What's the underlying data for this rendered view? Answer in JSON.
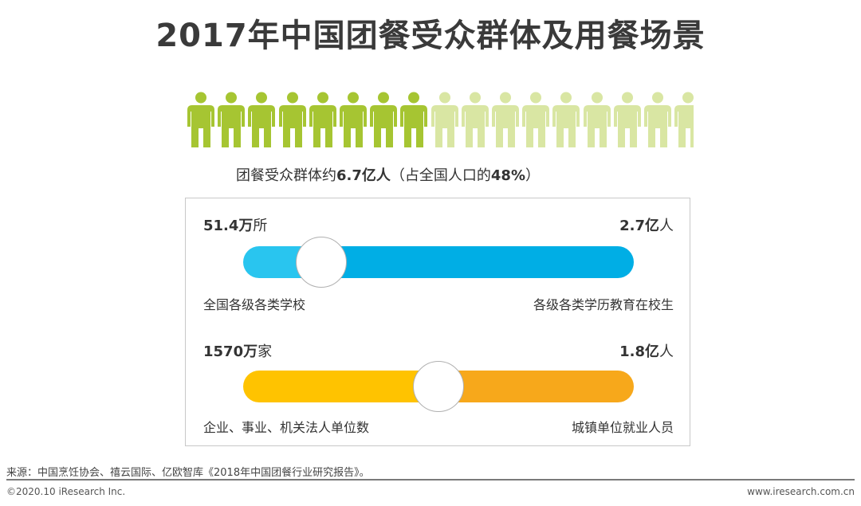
{
  "title": "2017年中国团餐受众群体及用餐场景",
  "chart_data": {
    "type": "pictogram",
    "icon": "person-icon",
    "total_icons": 17,
    "highlighted_icons": 8,
    "highlight_color": "#a6c532",
    "base_color": "#d9e6a3",
    "summary": {
      "prefix": "团餐受众群体约",
      "value": "6.7亿人",
      "suffix": "（占全国人口的",
      "percent": "48%",
      "close": "）"
    },
    "share_percent": 48,
    "comparisons": [
      {
        "left_value": "51.4万",
        "left_unit": "所",
        "left_label": "全国各级各类学校",
        "right_value": "2.7亿",
        "right_unit": "人",
        "right_label": "各级各类学历教育在校生",
        "left_color": "#29c5ef",
        "right_color": "#00aee5",
        "knob_fraction": 0.2
      },
      {
        "left_value": "1570万",
        "left_unit": "家",
        "left_label": "企业、事业、机关法人单位数",
        "right_value": "1.8亿",
        "right_unit": "人",
        "right_label": "城镇单位就业人员",
        "left_color": "#ffc300",
        "right_color": "#f7a81b",
        "knob_fraction": 0.5
      }
    ]
  },
  "footer": {
    "source": "来源：中国烹饪协会、禧云国际、亿欧智库《2018年中国团餐行业研究报告》。",
    "copyright": "©2020.10 iResearch Inc.",
    "website": "www.iresearch.com.cn"
  }
}
